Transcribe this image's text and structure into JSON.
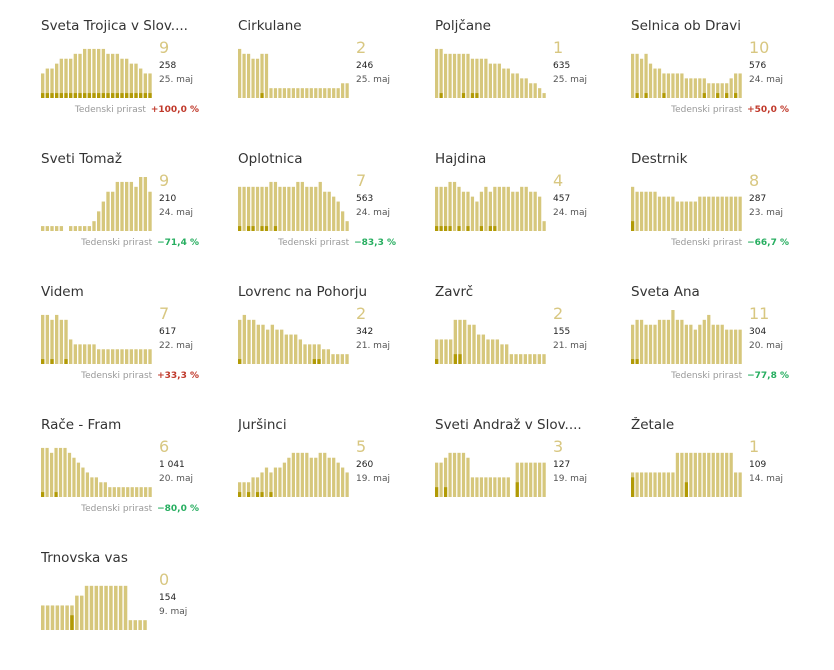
{
  "colors": {
    "bar": "#d6c77c",
    "bar_dark": "#b19a05",
    "active_text": "#d8c781",
    "up": "#c0392b",
    "down": "#27ae60"
  },
  "growth_label": "Tedenski prirast",
  "chart_data": [
    {
      "type": "bar",
      "title": "Sveta Trojica v Slov....",
      "active": "9",
      "total": "258",
      "date": "25. maj",
      "growth": "+100,0 %",
      "trend": "up",
      "values": [
        5,
        6,
        6,
        7,
        8,
        8,
        8,
        9,
        9,
        10,
        10,
        10,
        10,
        10,
        9,
        9,
        9,
        8,
        8,
        7,
        7,
        6,
        5,
        5
      ],
      "recent": [
        1,
        1,
        1,
        1,
        1,
        1,
        1,
        1,
        1,
        1,
        1,
        1,
        1,
        1,
        1,
        1,
        1,
        1,
        1,
        1,
        1,
        1,
        1,
        1
      ]
    },
    {
      "type": "bar",
      "title": "Cirkulane",
      "active": "2",
      "total": "246",
      "date": "25. maj",
      "growth": "",
      "trend": "",
      "values": [
        10,
        9,
        9,
        8,
        8,
        9,
        9,
        2,
        2,
        2,
        2,
        2,
        2,
        2,
        2,
        2,
        2,
        2,
        2,
        2,
        2,
        2,
        2,
        3,
        3
      ],
      "recent": [
        0,
        0,
        0,
        0,
        0,
        1,
        0,
        0,
        0,
        0,
        0,
        0,
        0,
        0,
        0,
        0,
        0,
        0,
        0,
        0,
        0,
        0,
        0,
        0,
        0
      ]
    },
    {
      "type": "bar",
      "title": "Poljčane",
      "active": "1",
      "total": "635",
      "date": "25. maj",
      "growth": "",
      "trend": "",
      "values": [
        10,
        10,
        9,
        9,
        9,
        9,
        9,
        9,
        8,
        8,
        8,
        8,
        7,
        7,
        7,
        6,
        6,
        5,
        5,
        4,
        4,
        3,
        3,
        2,
        1
      ],
      "recent": [
        0,
        1,
        0,
        0,
        0,
        0,
        1,
        0,
        1,
        1,
        0,
        0,
        0,
        0,
        0,
        0,
        0,
        0,
        0,
        0,
        0,
        0,
        0,
        0,
        0
      ]
    },
    {
      "type": "bar",
      "title": "Selnica ob Dravi",
      "active": "10",
      "total": "576",
      "date": "24. maj",
      "growth": "+50,0 %",
      "trend": "up",
      "values": [
        9,
        9,
        8,
        9,
        7,
        6,
        6,
        5,
        5,
        5,
        5,
        5,
        4,
        4,
        4,
        4,
        4,
        3,
        3,
        3,
        3,
        3,
        4,
        5,
        5
      ],
      "recent": [
        0,
        1,
        0,
        1,
        0,
        0,
        0,
        1,
        0,
        0,
        0,
        0,
        0,
        0,
        0,
        0,
        1,
        0,
        0,
        1,
        0,
        1,
        0,
        1,
        0
      ]
    },
    {
      "type": "bar",
      "title": "Sveti Tomaž",
      "active": "9",
      "total": "210",
      "date": "24. maj",
      "growth": "−71,4 %",
      "trend": "down",
      "values": [
        1,
        1,
        1,
        1,
        1,
        0,
        1,
        1,
        1,
        1,
        1,
        2,
        4,
        6,
        8,
        8,
        10,
        10,
        10,
        10,
        9,
        11,
        11,
        8
      ],
      "recent": [
        0,
        0,
        0,
        0,
        0,
        0,
        0,
        0,
        0,
        0,
        0,
        0,
        0,
        0,
        0,
        0,
        0,
        0,
        0,
        0,
        0,
        0,
        0,
        0
      ]
    },
    {
      "type": "bar",
      "title": "Oplotnica",
      "active": "7",
      "total": "563",
      "date": "24. maj",
      "growth": "−83,3 %",
      "trend": "down",
      "values": [
        9,
        9,
        9,
        9,
        9,
        9,
        9,
        10,
        10,
        9,
        9,
        9,
        9,
        10,
        10,
        9,
        9,
        9,
        10,
        8,
        8,
        7,
        6,
        4,
        2
      ],
      "recent": [
        1,
        0,
        1,
        1,
        0,
        1,
        1,
        0,
        1,
        0,
        0,
        0,
        0,
        0,
        0,
        0,
        0,
        0,
        0,
        0,
        0,
        0,
        0,
        0,
        0
      ]
    },
    {
      "type": "bar",
      "title": "Hajdina",
      "active": "4",
      "total": "457",
      "date": "24. maj",
      "growth": "",
      "trend": "",
      "values": [
        9,
        9,
        9,
        10,
        10,
        9,
        8,
        8,
        7,
        6,
        8,
        9,
        8,
        9,
        9,
        9,
        9,
        8,
        8,
        9,
        9,
        8,
        8,
        7,
        2
      ],
      "recent": [
        1,
        1,
        1,
        1,
        0,
        1,
        0,
        1,
        0,
        0,
        1,
        0,
        1,
        1,
        0,
        0,
        0,
        0,
        0,
        0,
        0,
        0,
        0,
        0,
        0
      ]
    },
    {
      "type": "bar",
      "title": "Destrnik",
      "active": "8",
      "total": "287",
      "date": "23. maj",
      "growth": "−66,7 %",
      "trend": "down",
      "values": [
        9,
        8,
        8,
        8,
        8,
        8,
        7,
        7,
        7,
        7,
        6,
        6,
        6,
        6,
        6,
        7,
        7,
        7,
        7,
        7,
        7,
        7,
        7,
        7,
        7
      ],
      "recent": [
        2,
        0,
        0,
        0,
        0,
        0,
        0,
        0,
        0,
        0,
        0,
        0,
        0,
        0,
        0,
        0,
        0,
        0,
        0,
        0,
        0,
        0,
        0,
        0,
        0
      ]
    },
    {
      "type": "bar",
      "title": "Videm",
      "active": "7",
      "total": "617",
      "date": "22. maj",
      "growth": "+33,3 %",
      "trend": "up",
      "values": [
        10,
        10,
        9,
        10,
        9,
        9,
        5,
        4,
        4,
        4,
        4,
        4,
        3,
        3,
        3,
        3,
        3,
        3,
        3,
        3,
        3,
        3,
        3,
        3
      ],
      "recent": [
        1,
        0,
        1,
        0,
        0,
        1,
        0,
        0,
        0,
        0,
        0,
        0,
        0,
        0,
        0,
        0,
        0,
        0,
        0,
        0,
        0,
        0,
        0,
        0
      ]
    },
    {
      "type": "bar",
      "title": "Lovrenc na Pohorju",
      "active": "2",
      "total": "342",
      "date": "21. maj",
      "growth": "",
      "trend": "",
      "values": [
        9,
        10,
        9,
        9,
        8,
        8,
        7,
        8,
        7,
        7,
        6,
        6,
        6,
        5,
        4,
        4,
        4,
        4,
        3,
        3,
        2,
        2,
        2,
        2
      ],
      "recent": [
        1,
        0,
        0,
        0,
        0,
        0,
        0,
        0,
        0,
        0,
        0,
        0,
        0,
        0,
        0,
        0,
        1,
        1,
        0,
        0,
        0,
        0,
        0,
        0
      ]
    },
    {
      "type": "bar",
      "title": "Zavrč",
      "active": "2",
      "total": "155",
      "date": "21. maj",
      "growth": "",
      "trend": "",
      "values": [
        5,
        5,
        5,
        5,
        9,
        9,
        9,
        8,
        8,
        6,
        6,
        5,
        5,
        5,
        4,
        4,
        2,
        2,
        2,
        2,
        2,
        2,
        2,
        2
      ],
      "recent": [
        1,
        0,
        0,
        0,
        2,
        2,
        0,
        0,
        0,
        0,
        0,
        0,
        0,
        0,
        0,
        0,
        0,
        0,
        0,
        0,
        0,
        0,
        0,
        0
      ]
    },
    {
      "type": "bar",
      "title": "Sveta Ana",
      "active": "11",
      "total": "304",
      "date": "20. maj",
      "growth": "−77,8 %",
      "trend": "down",
      "values": [
        8,
        9,
        9,
        8,
        8,
        8,
        9,
        9,
        9,
        11,
        9,
        9,
        8,
        8,
        7,
        8,
        9,
        10,
        8,
        8,
        8,
        7,
        7,
        7,
        7
      ],
      "recent": [
        1,
        1,
        0,
        0,
        0,
        0,
        0,
        0,
        0,
        0,
        0,
        0,
        0,
        0,
        0,
        0,
        0,
        0,
        0,
        0,
        0,
        0,
        0,
        0,
        0
      ]
    },
    {
      "type": "bar",
      "title": "Rače - Fram",
      "active": "6",
      "total": "1 041",
      "date": "20. maj",
      "growth": "−80,0 %",
      "trend": "down",
      "values": [
        10,
        10,
        9,
        10,
        10,
        10,
        9,
        8,
        7,
        6,
        5,
        4,
        4,
        3,
        3,
        2,
        2,
        2,
        2,
        2,
        2,
        2,
        2,
        2,
        2
      ],
      "recent": [
        1,
        0,
        0,
        1,
        0,
        0,
        0,
        0,
        0,
        0,
        0,
        0,
        0,
        0,
        0,
        0,
        0,
        0,
        0,
        0,
        0,
        0,
        0,
        0,
        0
      ]
    },
    {
      "type": "bar",
      "title": "Juršinci",
      "active": "5",
      "total": "260",
      "date": "19. maj",
      "growth": "",
      "trend": "",
      "values": [
        3,
        3,
        3,
        4,
        4,
        5,
        6,
        5,
        6,
        6,
        7,
        8,
        9,
        9,
        9,
        9,
        8,
        8,
        9,
        9,
        8,
        8,
        7,
        6,
        5
      ],
      "recent": [
        1,
        0,
        1,
        0,
        1,
        1,
        0,
        1,
        0,
        0,
        0,
        0,
        0,
        0,
        0,
        0,
        0,
        0,
        0,
        0,
        0,
        0,
        0,
        0,
        0
      ]
    },
    {
      "type": "bar",
      "title": "Sveti Andraž v Slov....",
      "active": "3",
      "total": "127",
      "date": "19. maj",
      "growth": "",
      "trend": "",
      "values": [
        7,
        7,
        8,
        9,
        9,
        9,
        9,
        8,
        4,
        4,
        4,
        4,
        4,
        4,
        4,
        4,
        4,
        0,
        7,
        7,
        7,
        7,
        7,
        7,
        7
      ],
      "recent": [
        2,
        0,
        2,
        0,
        0,
        0,
        0,
        0,
        0,
        0,
        0,
        0,
        0,
        0,
        0,
        0,
        0,
        0,
        3,
        0,
        0,
        0,
        0,
        0,
        0
      ]
    },
    {
      "type": "bar",
      "title": "Žetale",
      "active": "1",
      "total": "109",
      "date": "14. maj",
      "growth": "",
      "trend": "",
      "values": [
        5,
        5,
        5,
        5,
        5,
        5,
        5,
        5,
        5,
        5,
        9,
        9,
        9,
        9,
        9,
        9,
        9,
        9,
        9,
        9,
        9,
        9,
        9,
        5,
        5
      ],
      "recent": [
        4,
        0,
        0,
        0,
        0,
        0,
        0,
        0,
        0,
        0,
        0,
        0,
        3,
        0,
        0,
        0,
        0,
        0,
        0,
        0,
        0,
        0,
        0,
        0,
        0
      ]
    },
    {
      "type": "bar",
      "title": "Trnovska vas",
      "active": "0",
      "total": "154",
      "date": "9. maj",
      "growth": "",
      "trend": "",
      "values": [
        5,
        5,
        5,
        5,
        5,
        5,
        5,
        7,
        7,
        9,
        9,
        9,
        9,
        9,
        9,
        9,
        9,
        9,
        2,
        2,
        2,
        2,
        0
      ],
      "recent": [
        0,
        0,
        0,
        0,
        0,
        0,
        3,
        0,
        0,
        0,
        0,
        0,
        0,
        0,
        0,
        0,
        0,
        0,
        0,
        0,
        0,
        0,
        0
      ]
    }
  ]
}
